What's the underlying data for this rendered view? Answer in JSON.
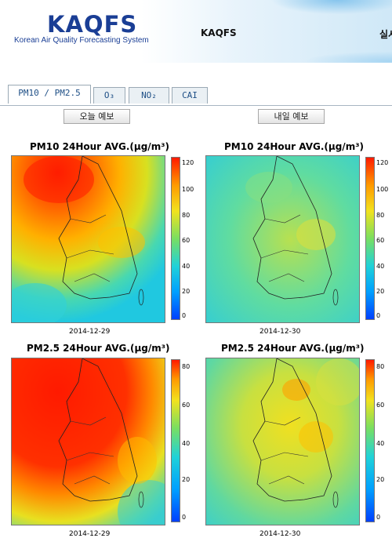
{
  "header": {
    "logo_title": "KAQFS",
    "logo_subtitle": "Korean Air Quality Forecasting System",
    "title": "KAQFS",
    "right_text": "실시"
  },
  "tabs": [
    {
      "label": "PM10 / PM2.5",
      "active": true
    },
    {
      "label": "O₃",
      "active": false
    },
    {
      "label": "NO₂",
      "active": false
    },
    {
      "label": "CAI",
      "active": false
    }
  ],
  "buttons": {
    "today": "오늘 예보",
    "tomorrow": "내일 예보"
  },
  "panels": [
    {
      "title": "PM10 24Hour AVG.(μg/m³)",
      "date": "2014-12-29",
      "ticks": [
        "120",
        "100",
        "80",
        "60",
        "40",
        "20",
        "0"
      ]
    },
    {
      "title": "PM10 24Hour AVG.(μg/m³)",
      "date": "2014-12-30",
      "ticks": [
        "120",
        "100",
        "80",
        "60",
        "40",
        "20",
        "0"
      ]
    },
    {
      "title": "PM2.5 24Hour AVG.(μg/m³)",
      "date": "2014-12-29",
      "ticks": [
        "80",
        "60",
        "40",
        "20",
        "0"
      ]
    },
    {
      "title": "PM2.5 24Hour AVG.(μg/m³)",
      "date": "2014-12-30",
      "ticks": [
        "80",
        "60",
        "40",
        "20",
        "0"
      ]
    }
  ]
}
